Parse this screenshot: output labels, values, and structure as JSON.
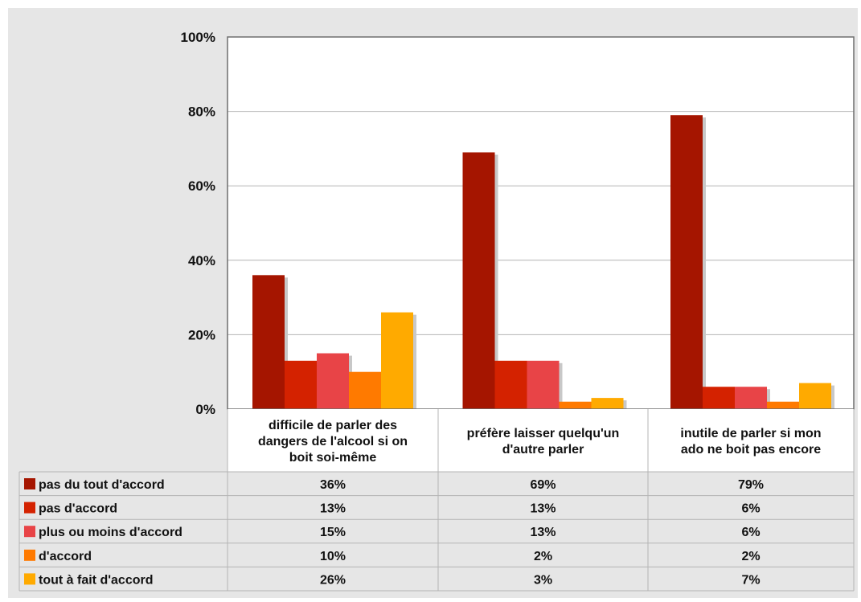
{
  "chart_data": {
    "type": "bar",
    "categories": [
      [
        "difficile de parler des",
        "dangers de l'alcool si on",
        "boit soi-même"
      ],
      [
        "préfère laisser quelqu'un",
        "d'autre parler"
      ],
      [
        "inutile de parler si mon",
        "ado ne boit pas encore"
      ]
    ],
    "series": [
      {
        "name": "pas du tout d'accord",
        "color": "#a51500",
        "values": [
          36,
          69,
          79
        ],
        "labels": [
          "36%",
          "69%",
          "79%"
        ]
      },
      {
        "name": "pas d'accord",
        "color": "#d42200",
        "values": [
          13,
          13,
          6
        ],
        "labels": [
          "13%",
          "13%",
          "6%"
        ]
      },
      {
        "name": "plus ou moins d'accord",
        "color": "#e84447",
        "values": [
          15,
          13,
          6
        ],
        "labels": [
          "15%",
          "13%",
          "6%"
        ]
      },
      {
        "name": "d'accord",
        "color": "#ff7a00",
        "values": [
          10,
          2,
          2
        ],
        "labels": [
          "10%",
          "2%",
          "2%"
        ]
      },
      {
        "name": "tout à fait d'accord",
        "color": "#ffaa00",
        "values": [
          26,
          3,
          7
        ],
        "labels": [
          "26%",
          "3%",
          "7%"
        ]
      }
    ],
    "ylim": [
      0,
      100
    ],
    "yticks": [
      "0%",
      "20%",
      "40%",
      "60%",
      "80%",
      "100%"
    ],
    "grid": true,
    "legend": "data-table-below"
  }
}
